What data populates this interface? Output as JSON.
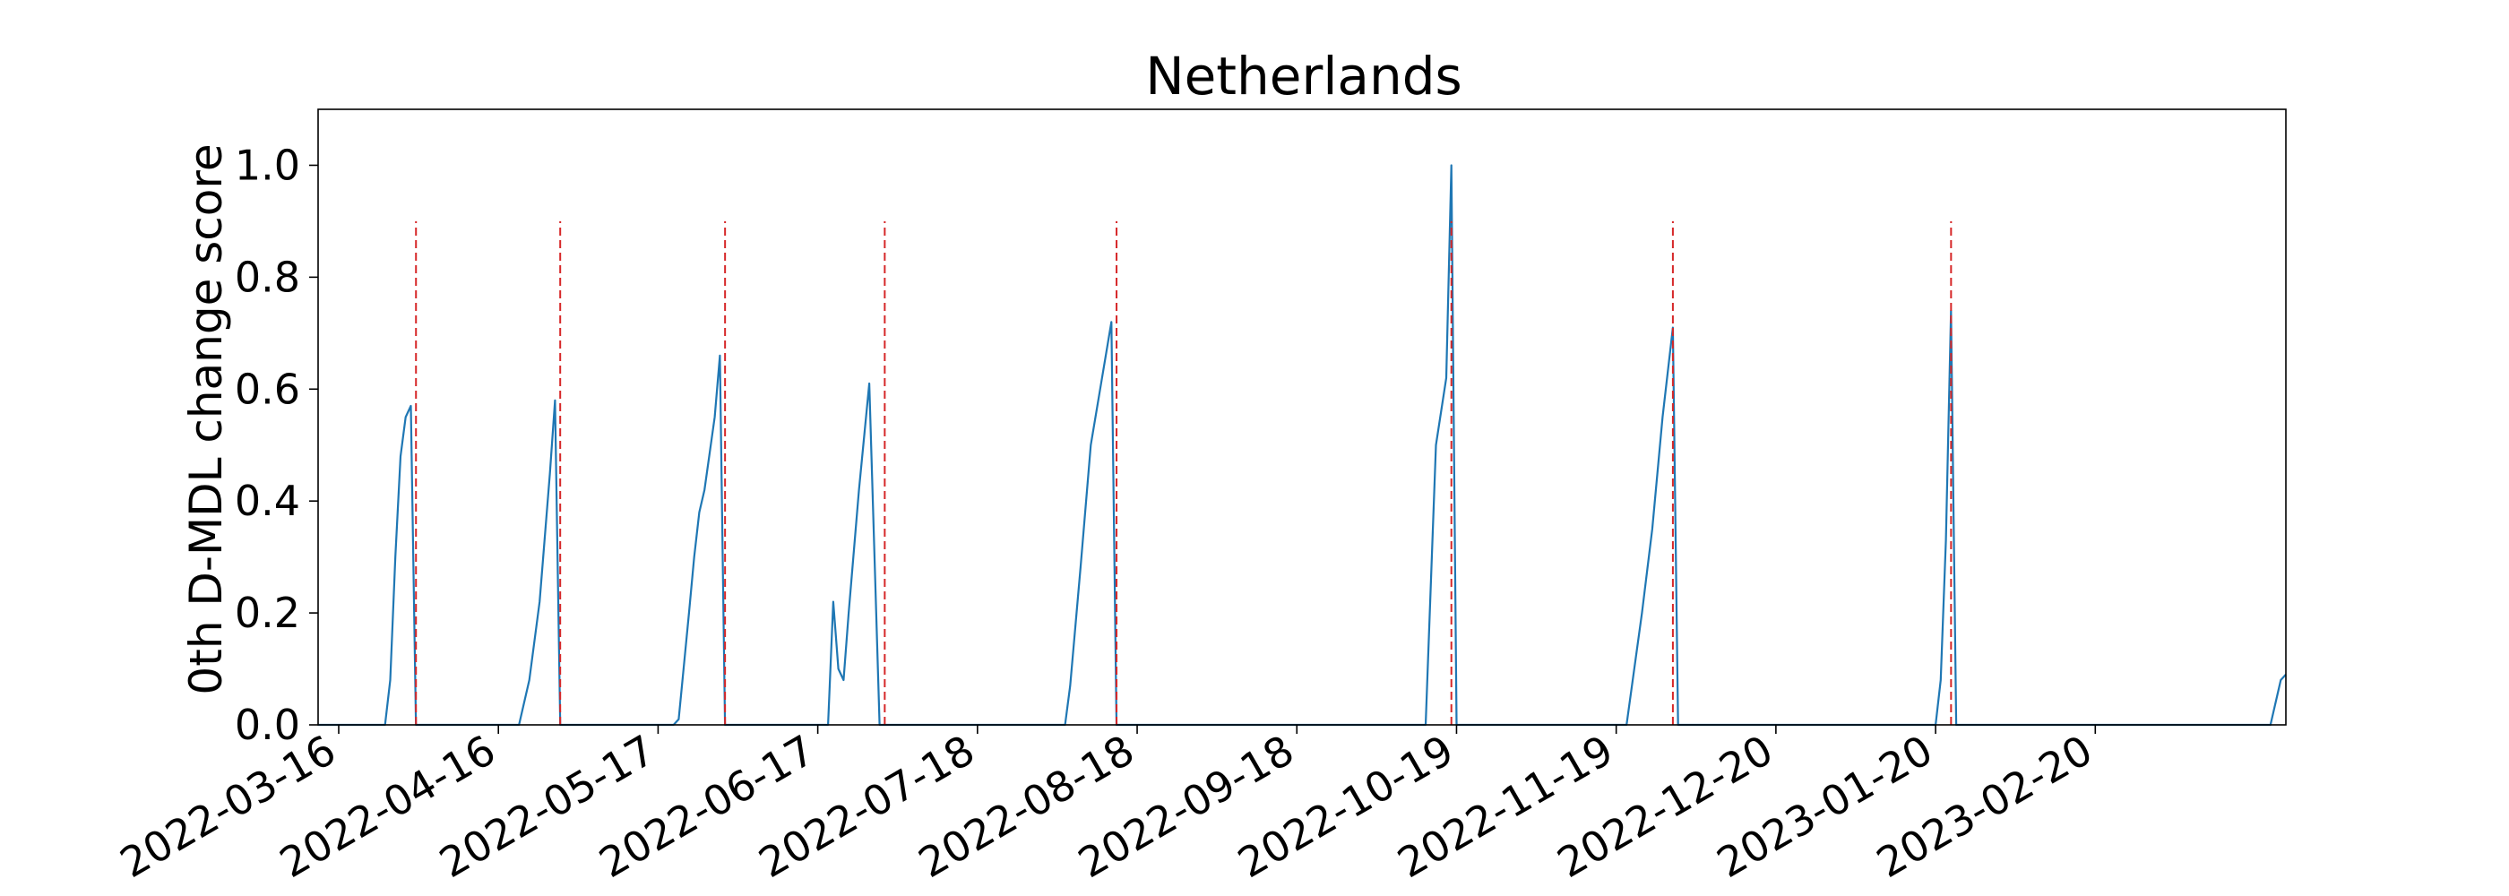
{
  "chart_data": {
    "type": "line",
    "title": "Netherlands",
    "xlabel": "",
    "ylabel": "0th D-MDL change score",
    "ylim": [
      0.0,
      1.1
    ],
    "xlim": [
      "2022-03-12",
      "2023-03-29"
    ],
    "yticks": [
      0.0,
      0.2,
      0.4,
      0.6,
      0.8,
      1.0
    ],
    "ytick_labels": [
      "0.0",
      "0.2",
      "0.4",
      "0.6",
      "0.8",
      "1.0"
    ],
    "xticks": [
      "2022-03-16",
      "2022-04-16",
      "2022-05-17",
      "2022-06-17",
      "2022-07-18",
      "2022-08-18",
      "2022-09-18",
      "2022-10-19",
      "2022-11-19",
      "2022-12-20",
      "2023-01-20",
      "2023-02-20"
    ],
    "grid": false,
    "legend": "none",
    "line_color": "#1f77b4",
    "marker_color": "#d62728",
    "series": [
      {
        "x": [
          "2022-03-12",
          "2022-03-25",
          "2022-03-26",
          "2022-03-27",
          "2022-03-28",
          "2022-03-29",
          "2022-03-30",
          "2022-03-31",
          "2022-04-01",
          "2022-04-02",
          "2022-04-20",
          "2022-04-22",
          "2022-04-24",
          "2022-04-26",
          "2022-04-27",
          "2022-04-28",
          "2022-05-20",
          "2022-05-21",
          "2022-05-23",
          "2022-05-24",
          "2022-05-25",
          "2022-05-26",
          "2022-05-28",
          "2022-05-29",
          "2022-05-30",
          "2022-05-31",
          "2022-06-01",
          "2022-06-19",
          "2022-06-20",
          "2022-06-21",
          "2022-06-22",
          "2022-06-23",
          "2022-06-25",
          "2022-06-27",
          "2022-06-29",
          "2022-06-30",
          "2022-08-04",
          "2022-08-05",
          "2022-08-07",
          "2022-08-09",
          "2022-08-11",
          "2022-08-13",
          "2022-08-14",
          "2022-08-15",
          "2022-10-13",
          "2022-10-15",
          "2022-10-17",
          "2022-10-18",
          "2022-10-19",
          "2022-11-21",
          "2022-11-24",
          "2022-11-26",
          "2022-11-28",
          "2022-11-30",
          "2022-12-01",
          "2023-01-20",
          "2023-01-21",
          "2023-01-22",
          "2023-01-23",
          "2023-01-24",
          "2023-01-25",
          "2023-03-26",
          "2023-03-28",
          "2023-03-29"
        ],
        "y": [
          0.0,
          0.0,
          0.08,
          0.3,
          0.48,
          0.55,
          0.57,
          0.0,
          0.0,
          0.0,
          0.0,
          0.08,
          0.22,
          0.45,
          0.58,
          0.0,
          0.0,
          0.01,
          0.2,
          0.3,
          0.38,
          0.42,
          0.55,
          0.66,
          0.0,
          0.0,
          0.0,
          0.0,
          0.22,
          0.1,
          0.08,
          0.2,
          0.42,
          0.61,
          0.0,
          0.0,
          0.0,
          0.07,
          0.28,
          0.5,
          0.61,
          0.72,
          0.0,
          0.0,
          0.0,
          0.5,
          0.62,
          1.0,
          0.0,
          0.0,
          0.2,
          0.35,
          0.55,
          0.71,
          0.0,
          0.0,
          0.08,
          0.33,
          0.74,
          0.0,
          0.0,
          0.0,
          0.08,
          0.09
        ]
      }
    ],
    "change_points": [
      "2022-03-31",
      "2022-04-28",
      "2022-05-30",
      "2022-06-30",
      "2022-08-14",
      "2022-10-18",
      "2022-11-30",
      "2023-01-23"
    ]
  }
}
